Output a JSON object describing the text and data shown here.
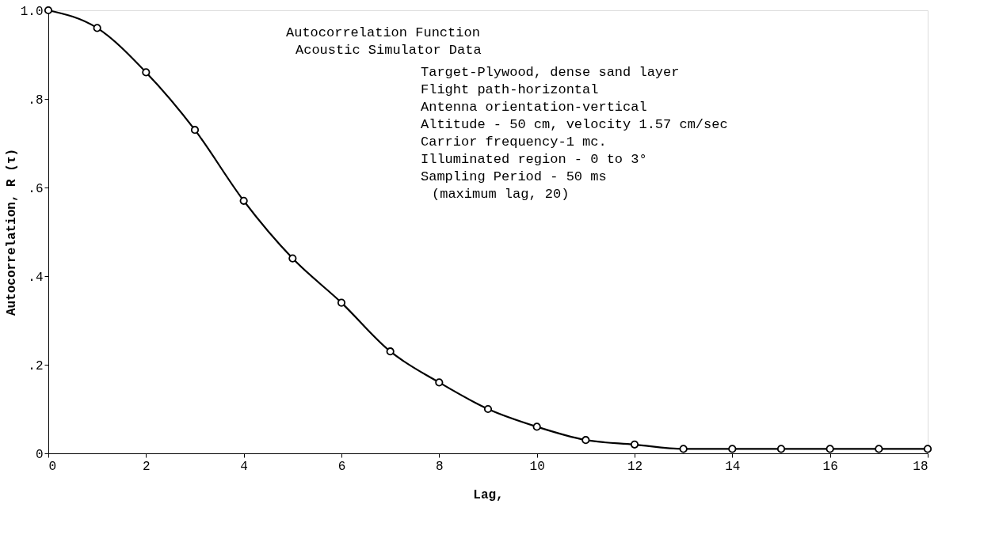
{
  "chart_data": {
    "type": "line",
    "title": "Autocorrelation Function",
    "subtitle": "Acoustic Simulator Data",
    "xlabel": "Lag,",
    "ylabel": "Autocorrelation, R (τ)",
    "x": [
      0,
      1,
      2,
      3,
      4,
      5,
      6,
      7,
      8,
      9,
      10,
      11,
      12,
      13,
      14,
      15,
      16,
      17,
      18
    ],
    "series": [
      {
        "color": "#000000",
        "values": [
          1.0,
          0.96,
          0.86,
          0.73,
          0.57,
          0.44,
          0.34,
          0.23,
          0.16,
          0.1,
          0.06,
          0.03,
          0.02,
          0.01,
          0.01,
          0.01,
          0.01,
          0.01,
          0.01
        ]
      }
    ],
    "xlim": [
      0,
      18
    ],
    "xticks": [
      0,
      2,
      4,
      6,
      8,
      10,
      12,
      14,
      16,
      18
    ],
    "ylim": [
      0,
      1.0
    ],
    "yticks": [
      {
        "value": 0,
        "label": "0"
      },
      {
        "value": 0.2,
        "label": ".2"
      },
      {
        "value": 0.4,
        "label": ".4"
      },
      {
        "value": 0.6,
        "label": ".6"
      },
      {
        "value": 0.8,
        "label": ".8"
      },
      {
        "value": 1.0,
        "label": "1.0"
      }
    ],
    "annotations": [
      "Target-Plywood, dense sand layer",
      "Flight path-horizontal",
      "Antenna orientation-vertical",
      "Altitude - 50 cm, velocity 1.57 cm/sec",
      "Carrior frequency-1 mc.",
      "Illuminated region - 0 to 3°",
      "Sampling Period - 50 ms",
      "(maximum lag, 20)"
    ],
    "grid": false,
    "marker": "circle",
    "line_style": "solid"
  }
}
